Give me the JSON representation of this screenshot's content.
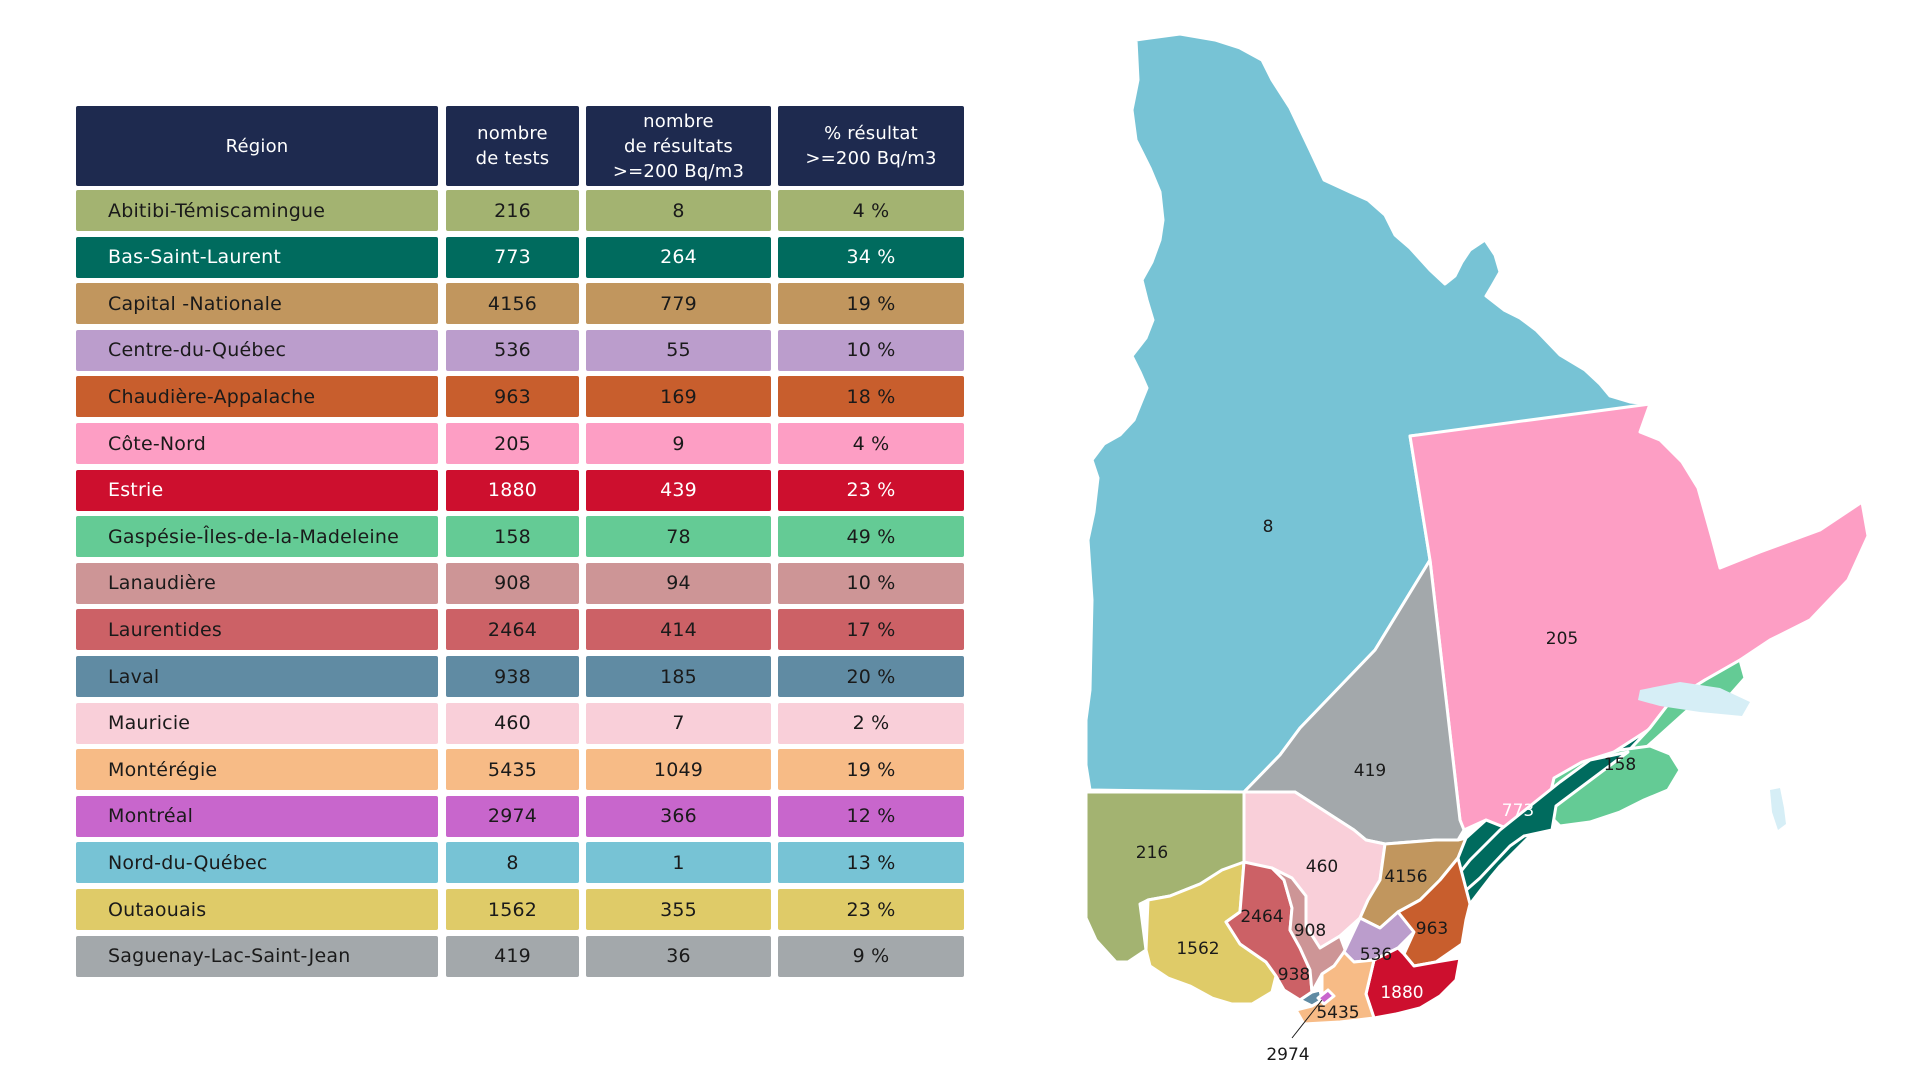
{
  "table": {
    "headers": [
      "Région",
      "nombre de tests",
      "nombre de résultats >=200 Bq/m3",
      "% résultat >=200 Bq/m3"
    ],
    "header_lines": [
      [
        "Région"
      ],
      [
        "nombre",
        "de tests"
      ],
      [
        "nombre",
        "de résultats",
        ">=200 Bq/m3"
      ],
      [
        "% résultat",
        ">=200 Bq/m3"
      ]
    ],
    "header_color": "#1e2a4f",
    "rows": [
      {
        "region": "Abitibi-Témiscamingue",
        "tests": "216",
        "results": "8",
        "percent": "4 %",
        "color": "#a3b371",
        "text": "#1a1a1a"
      },
      {
        "region": "Bas-Saint-Laurent",
        "tests": "773",
        "results": "264",
        "percent": "34 %",
        "color": "#006b5e",
        "text": "#ffffff"
      },
      {
        "region": "Capital -Nationale",
        "tests": "4156",
        "results": "779",
        "percent": "19 %",
        "color": "#c1965e",
        "text": "#1a1a1a"
      },
      {
        "region": "Centre-du-Québec",
        "tests": "536",
        "results": "55",
        "percent": "10 %",
        "color": "#bb9dcc",
        "text": "#1a1a1a"
      },
      {
        "region": "Chaudière-Appalache",
        "tests": "963",
        "results": "169",
        "percent": "18 %",
        "color": "#c85e2d",
        "text": "#1a1a1a"
      },
      {
        "region": "Côte-Nord",
        "tests": "205",
        "results": "9",
        "percent": "4 %",
        "color": "#fd9ec4",
        "text": "#1a1a1a"
      },
      {
        "region": "Estrie",
        "tests": "1880",
        "results": "439",
        "percent": "23 %",
        "color": "#cd0f2e",
        "text": "#ffffff"
      },
      {
        "region": "Gaspésie-Îles-de-la-Madeleine",
        "tests": "158",
        "results": "78",
        "percent": "49 %",
        "color": "#64cb95",
        "text": "#1a1a1a"
      },
      {
        "region": "Lanaudière",
        "tests": "908",
        "results": "94",
        "percent": "10 %",
        "color": "#cd9596",
        "text": "#1a1a1a"
      },
      {
        "region": "Laurentides",
        "tests": "2464",
        "results": "414",
        "percent": "17 %",
        "color": "#cc6166",
        "text": "#1a1a1a"
      },
      {
        "region": "Laval",
        "tests": "938",
        "results": "185",
        "percent": "20 %",
        "color": "#608ba3",
        "text": "#1a1a1a"
      },
      {
        "region": "Mauricie",
        "tests": "460",
        "results": "7",
        "percent": "2 %",
        "color": "#f9cfd9",
        "text": "#1a1a1a"
      },
      {
        "region": "Montérégie",
        "tests": "5435",
        "results": "1049",
        "percent": "19 %",
        "color": "#f7bb86",
        "text": "#1a1a1a"
      },
      {
        "region": "Montréal",
        "tests": "2974",
        "results": "366",
        "percent": "12 %",
        "color": "#c866cc",
        "text": "#1a1a1a"
      },
      {
        "region": "Nord-du-Québec",
        "tests": "8",
        "results": "1",
        "percent": "13 %",
        "color": "#77c3d5",
        "text": "#1a1a1a"
      },
      {
        "region": "Outaouais",
        "tests": "1562",
        "results": "355",
        "percent": "23 %",
        "color": "#dfcb68",
        "text": "#1a1a1a"
      },
      {
        "region": "Saguenay-Lac-Saint-Jean",
        "tests": "419",
        "results": "36",
        "percent": "9 %",
        "color": "#a3a8ab",
        "text": "#1a1a1a"
      }
    ]
  },
  "map": {
    "labels": {
      "nord": "8",
      "cote_nord": "205",
      "saguenay": "419",
      "gaspesie": "158",
      "bas_st_laurent": "773",
      "abitibi": "216",
      "mauricie": "460",
      "capitale": "4156",
      "lanaudiere": "908",
      "laurentides": "2464",
      "outaouais": "1562",
      "chaudiere": "963",
      "centre": "536",
      "laval": "938",
      "estrie": "1880",
      "monteregie": "5435",
      "montreal": "2974"
    },
    "water_color": "#d6eef6"
  }
}
